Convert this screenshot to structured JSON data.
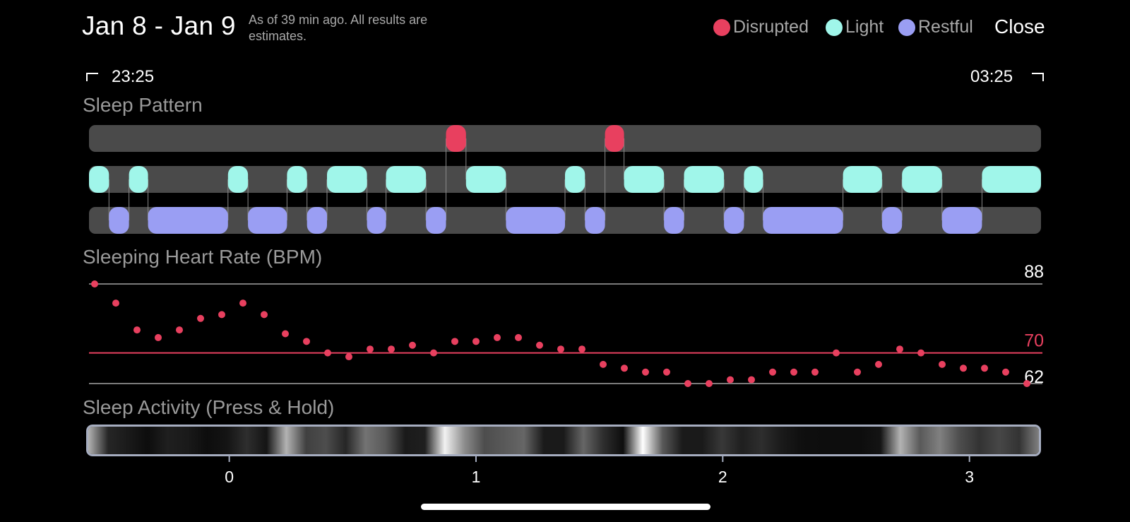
{
  "header": {
    "title": "Jan 8 - Jan 9",
    "subtitle": "As of 39 min ago. All results are estimates.",
    "close_label": "Close"
  },
  "legend": [
    {
      "label": "Disrupted",
      "color": "#e8405f"
    },
    {
      "label": "Light",
      "color": "#a0f6ea"
    },
    {
      "label": "Restful",
      "color": "#9a9ef3"
    }
  ],
  "time_range": {
    "start": "23:25",
    "end": "03:25"
  },
  "sleep_pattern": {
    "label": "Sleep Pattern",
    "colors": {
      "Disrupted": "#e8405f",
      "Light": "#a0f6ea",
      "Restful": "#9a9ef3",
      "track": "#4a4a4a"
    },
    "segments": [
      {
        "stage": "Light",
        "start": 0.0,
        "end": 0.021
      },
      {
        "stage": "Restful",
        "start": 0.021,
        "end": 0.042
      },
      {
        "stage": "Light",
        "start": 0.042,
        "end": 0.062
      },
      {
        "stage": "Restful",
        "start": 0.062,
        "end": 0.146
      },
      {
        "stage": "Light",
        "start": 0.146,
        "end": 0.167
      },
      {
        "stage": "Restful",
        "start": 0.167,
        "end": 0.208
      },
      {
        "stage": "Light",
        "start": 0.208,
        "end": 0.229
      },
      {
        "stage": "Restful",
        "start": 0.229,
        "end": 0.25
      },
      {
        "stage": "Light",
        "start": 0.25,
        "end": 0.292
      },
      {
        "stage": "Restful",
        "start": 0.292,
        "end": 0.312
      },
      {
        "stage": "Light",
        "start": 0.312,
        "end": 0.354
      },
      {
        "stage": "Restful",
        "start": 0.354,
        "end": 0.375
      },
      {
        "stage": "Disrupted",
        "start": 0.375,
        "end": 0.396
      },
      {
        "stage": "Light",
        "start": 0.396,
        "end": 0.438
      },
      {
        "stage": "Restful",
        "start": 0.438,
        "end": 0.5
      },
      {
        "stage": "Light",
        "start": 0.5,
        "end": 0.521
      },
      {
        "stage": "Restful",
        "start": 0.521,
        "end": 0.542
      },
      {
        "stage": "Disrupted",
        "start": 0.542,
        "end": 0.562
      },
      {
        "stage": "Light",
        "start": 0.562,
        "end": 0.604
      },
      {
        "stage": "Restful",
        "start": 0.604,
        "end": 0.625
      },
      {
        "stage": "Light",
        "start": 0.625,
        "end": 0.667
      },
      {
        "stage": "Restful",
        "start": 0.667,
        "end": 0.688
      },
      {
        "stage": "Light",
        "start": 0.688,
        "end": 0.708
      },
      {
        "stage": "Restful",
        "start": 0.708,
        "end": 0.792
      },
      {
        "stage": "Light",
        "start": 0.792,
        "end": 0.833
      },
      {
        "stage": "Restful",
        "start": 0.833,
        "end": 0.854
      },
      {
        "stage": "Light",
        "start": 0.854,
        "end": 0.896
      },
      {
        "stage": "Restful",
        "start": 0.896,
        "end": 0.938
      },
      {
        "stage": "Light",
        "start": 0.938,
        "end": 1.0
      }
    ]
  },
  "heart_rate": {
    "label": "Sleeping Heart Rate (BPM)",
    "max_label": "88",
    "avg_label": "70",
    "min_label": "62",
    "max": 88,
    "avg": 70,
    "min": 62,
    "dot_color": "#e8405f",
    "values": [
      88,
      83,
      76,
      74,
      76,
      79,
      80,
      83,
      80,
      75,
      73,
      70,
      69,
      71,
      71,
      72,
      70,
      73,
      73,
      74,
      74,
      72,
      71,
      71,
      67,
      66,
      65,
      65,
      62,
      62,
      63,
      63,
      65,
      65,
      65,
      70,
      65,
      67,
      71,
      70,
      67,
      66,
      66,
      65,
      62
    ]
  },
  "activity": {
    "label": "Sleep Activity (Press & Hold)",
    "intensity": [
      0.7,
      0.15,
      0.1,
      0.05,
      0.12,
      0.1,
      0.05,
      0.08,
      0.18,
      0.08,
      0.7,
      0.25,
      0.3,
      0.15,
      0.45,
      0.35,
      0.1,
      0.12,
      0.95,
      0.55,
      0.3,
      0.35,
      0.4,
      0.1,
      0.1,
      0.4,
      0.18,
      0.05,
      1.0,
      0.35,
      0.1,
      0.1,
      0.22,
      0.12,
      0.18,
      0.1,
      0.06,
      0.05,
      0.05,
      0.05,
      0.08,
      0.7,
      0.35,
      0.5,
      0.3,
      0.2,
      0.28,
      0.2,
      0.5
    ],
    "ticks": [
      "0",
      "1",
      "2",
      "3"
    ],
    "tick_positions": [
      0,
      1,
      2,
      3
    ],
    "axis_min": -0.58,
    "axis_max": 3.29
  }
}
